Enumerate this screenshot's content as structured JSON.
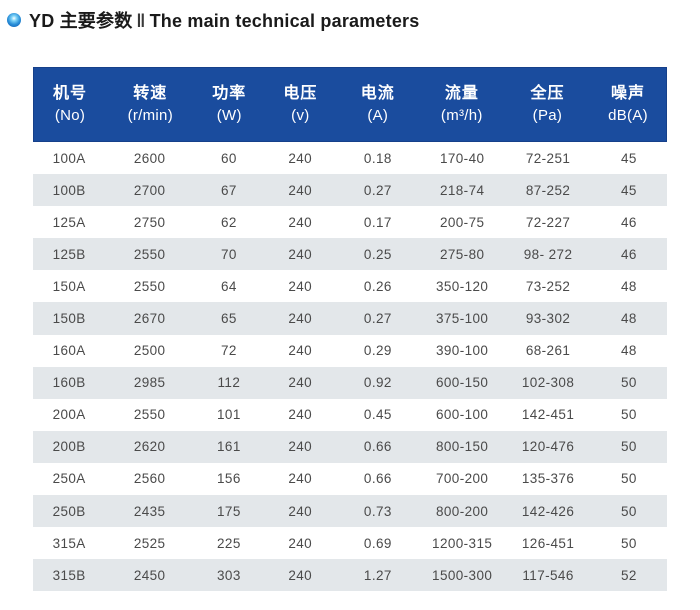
{
  "title": {
    "cn": "YD 主要参数",
    "divider": "‖",
    "en": "The main technical parameters"
  },
  "colors": {
    "header_bg": "#1a4c9e",
    "header_border": "#16408a",
    "header_text": "#ffffff",
    "stripe_bg": "#e3e7ea",
    "body_text": "#4a4a4a",
    "bullet_blue": "#0a55ae"
  },
  "icons": {
    "bullet": "glossy-blue-sphere"
  },
  "table": {
    "columns": [
      {
        "key": "no",
        "cn": "机号",
        "unit": "(No)"
      },
      {
        "key": "rpm",
        "cn": "转速",
        "unit": "(r/min)"
      },
      {
        "key": "power",
        "cn": "功率",
        "unit": "(W)"
      },
      {
        "key": "voltage",
        "cn": "电压",
        "unit": "(v)"
      },
      {
        "key": "current",
        "cn": "电流",
        "unit": "(A)"
      },
      {
        "key": "airflow",
        "cn": "流量",
        "unit": "(m³/h)"
      },
      {
        "key": "pressure",
        "cn": "全压",
        "unit": "(Pa)"
      },
      {
        "key": "noise",
        "cn": "噪声",
        "unit": "dB(A)"
      }
    ],
    "rows": [
      [
        "100A",
        "2600",
        "60",
        "240",
        "0.18",
        "170-40",
        "72-251",
        "45"
      ],
      [
        "100B",
        "2700",
        "67",
        "240",
        "0.27",
        "218-74",
        "87-252",
        "45"
      ],
      [
        "125A",
        "2750",
        "62",
        "240",
        "0.17",
        "200-75",
        "72-227",
        "46"
      ],
      [
        "125B",
        "2550",
        "70",
        "240",
        "0.25",
        "275-80",
        "98- 272",
        "46"
      ],
      [
        "150A",
        "2550",
        "64",
        "240",
        "0.26",
        "350-120",
        "73-252",
        "48"
      ],
      [
        "150B",
        "2670",
        "65",
        "240",
        "0.27",
        "375-100",
        "93-302",
        "48"
      ],
      [
        "160A",
        "2500",
        "72",
        "240",
        "0.29",
        "390-100",
        "68-261",
        "48"
      ],
      [
        "160B",
        "2985",
        "112",
        "240",
        "0.92",
        "600-150",
        "102-308",
        "50"
      ],
      [
        "200A",
        "2550",
        "101",
        "240",
        "0.45",
        "600-100",
        "142-451",
        "50"
      ],
      [
        "200B",
        "2620",
        "161",
        "240",
        "0.66",
        "800-150",
        "120-476",
        "50"
      ],
      [
        "250A",
        "2560",
        "156",
        "240",
        "0.66",
        "700-200",
        "135-376",
        "50"
      ],
      [
        "250B",
        "2435",
        "175",
        "240",
        "0.73",
        "800-200",
        "142-426",
        "50"
      ],
      [
        "315A",
        "2525",
        "225",
        "240",
        "0.69",
        "1200-315",
        "126-451",
        "50"
      ],
      [
        "315B",
        "2450",
        "303",
        "240",
        "1.27",
        "1500-300",
        "117-546",
        "52"
      ]
    ]
  }
}
